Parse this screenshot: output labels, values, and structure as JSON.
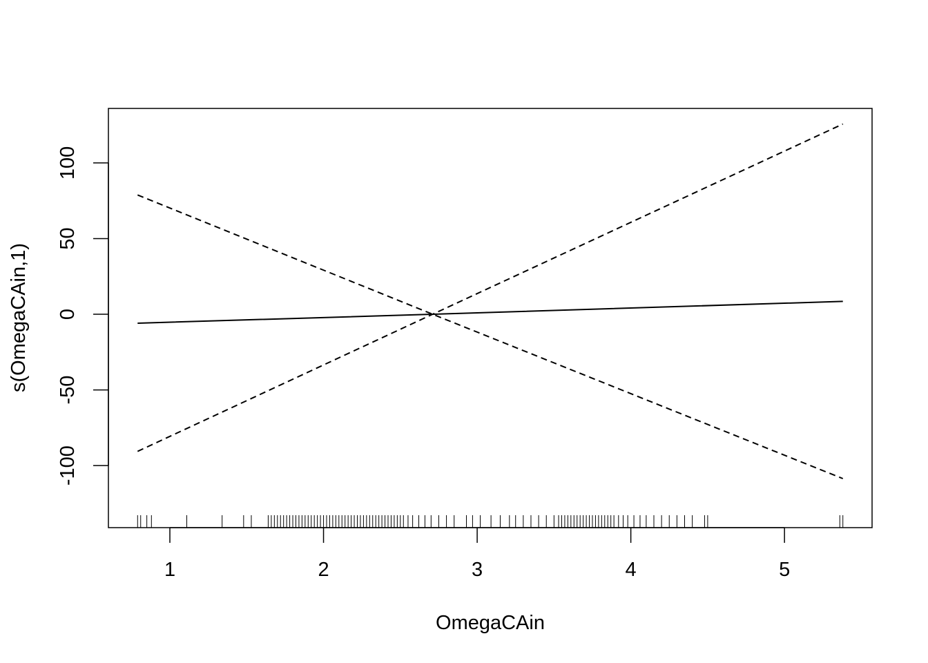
{
  "chart_data": {
    "type": "line",
    "title": "",
    "xlabel": "OmegaCAin",
    "ylabel": "s(OmegaCAin,1)",
    "xlim": [
      0.6,
      5.57
    ],
    "ylim": [
      -141,
      136
    ],
    "x_ticks": [
      1,
      2,
      3,
      4,
      5
    ],
    "x_tick_labels": [
      "1",
      "2",
      "3",
      "4",
      "5"
    ],
    "y_ticks": [
      -100,
      -50,
      0,
      50,
      100
    ],
    "y_tick_labels": [
      "-100",
      "-50",
      "0",
      "50",
      "100"
    ],
    "grid": false,
    "legend": "none",
    "series": [
      {
        "style": "solid",
        "x": [
          0.79,
          2.71,
          5.38
        ],
        "y": [
          -5.9,
          0.0,
          8.5
        ]
      },
      {
        "style": "dashed",
        "x": [
          0.79,
          2.71,
          5.38
        ],
        "y": [
          -90.6,
          0.0,
          125.7
        ]
      },
      {
        "style": "dashed",
        "x": [
          0.79,
          2.71,
          5.38
        ],
        "y": [
          78.8,
          0.0,
          -108.6
        ]
      }
    ],
    "rug": [
      0.79,
      0.81,
      0.85,
      0.88,
      1.11,
      1.34,
      1.48,
      1.53,
      1.64,
      1.66,
      1.68,
      1.7,
      1.72,
      1.74,
      1.76,
      1.78,
      1.8,
      1.82,
      1.84,
      1.86,
      1.88,
      1.9,
      1.92,
      1.94,
      1.96,
      1.98,
      2.0,
      2.02,
      2.04,
      2.06,
      2.08,
      2.1,
      2.12,
      2.14,
      2.16,
      2.18,
      2.2,
      2.22,
      2.24,
      2.26,
      2.28,
      2.3,
      2.32,
      2.34,
      2.36,
      2.38,
      2.4,
      2.42,
      2.44,
      2.46,
      2.48,
      2.5,
      2.52,
      2.55,
      2.58,
      2.62,
      2.66,
      2.7,
      2.75,
      2.8,
      2.85,
      2.93,
      2.97,
      3.02,
      3.09,
      3.15,
      3.21,
      3.25,
      3.3,
      3.35,
      3.4,
      3.45,
      3.5,
      3.53,
      3.55,
      3.57,
      3.59,
      3.61,
      3.63,
      3.65,
      3.67,
      3.69,
      3.71,
      3.73,
      3.75,
      3.77,
      3.79,
      3.81,
      3.83,
      3.85,
      3.87,
      3.89,
      3.92,
      3.95,
      3.98,
      4.02,
      4.06,
      4.1,
      4.15,
      4.2,
      4.25,
      4.3,
      4.35,
      4.4,
      4.48,
      4.5,
      5.36,
      5.38
    ]
  }
}
